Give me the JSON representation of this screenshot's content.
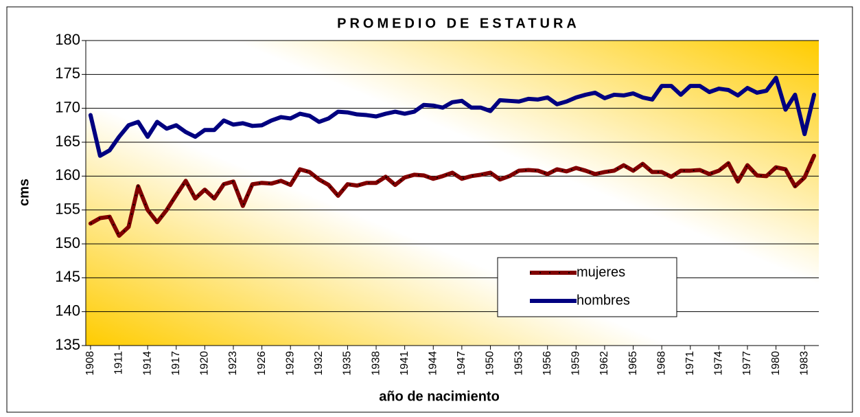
{
  "chart_data": {
    "type": "line",
    "title": "PROMEDIO DE ESTATURA",
    "x_label": "año de nacimiento",
    "y_label": "cms",
    "x": [
      1908,
      1909,
      1910,
      1911,
      1912,
      1913,
      1914,
      1915,
      1916,
      1917,
      1918,
      1919,
      1920,
      1921,
      1922,
      1923,
      1924,
      1925,
      1926,
      1927,
      1928,
      1929,
      1930,
      1931,
      1932,
      1933,
      1934,
      1935,
      1936,
      1937,
      1938,
      1939,
      1940,
      1941,
      1942,
      1943,
      1944,
      1945,
      1946,
      1947,
      1948,
      1949,
      1950,
      1951,
      1952,
      1953,
      1954,
      1955,
      1956,
      1957,
      1958,
      1959,
      1960,
      1961,
      1962,
      1963,
      1964,
      1965,
      1966,
      1967,
      1968,
      1969,
      1970,
      1971,
      1972,
      1973,
      1974,
      1975,
      1976,
      1977,
      1978,
      1979,
      1980,
      1981,
      1982,
      1983,
      1984
    ],
    "xlim": [
      1908,
      1984
    ],
    "xticks": [
      1908,
      1911,
      1914,
      1917,
      1920,
      1923,
      1926,
      1929,
      1932,
      1935,
      1938,
      1941,
      1944,
      1947,
      1950,
      1953,
      1956,
      1959,
      1962,
      1965,
      1968,
      1971,
      1974,
      1977,
      1980,
      1983
    ],
    "ylim": [
      135,
      180
    ],
    "yticks": [
      135,
      140,
      145,
      150,
      155,
      160,
      165,
      170,
      175,
      180
    ],
    "grid": true,
    "series": [
      {
        "name": "mujeres",
        "color": "#800000",
        "values": [
          153,
          153.8,
          154,
          151.2,
          152.5,
          158.5,
          155,
          153.2,
          155,
          157.2,
          159.3,
          156.7,
          158,
          156.7,
          158.8,
          159.2,
          155.6,
          158.8,
          159,
          158.9,
          159.3,
          158.7,
          161,
          160.6,
          159.5,
          158.7,
          157.1,
          158.8,
          158.6,
          159,
          159,
          159.9,
          158.7,
          159.8,
          160.2,
          160.1,
          159.6,
          160,
          160.5,
          159.6,
          160,
          160.2,
          160.5,
          159.5,
          160,
          160.8,
          160.9,
          160.8,
          160.3,
          161,
          160.7,
          161.2,
          160.8,
          160.3,
          160.6,
          160.8,
          161.6,
          160.8,
          161.8,
          160.6,
          160.6,
          159.9,
          160.8,
          160.8,
          160.9,
          160.3,
          160.8,
          161.9,
          159.2,
          161.6,
          160.1,
          160,
          161.3,
          161,
          158.5,
          159.8,
          163
        ]
      },
      {
        "name": "hombres",
        "color": "#000080",
        "values": [
          169,
          163,
          163.8,
          165.8,
          167.5,
          168,
          165.8,
          168,
          167,
          167.5,
          166.5,
          165.8,
          166.8,
          166.8,
          168.2,
          167.6,
          167.8,
          167.4,
          167.5,
          168.2,
          168.7,
          168.5,
          169.2,
          168.9,
          168,
          168.5,
          169.5,
          169.4,
          169.1,
          169,
          168.8,
          169.2,
          169.5,
          169.2,
          169.5,
          170.5,
          170.4,
          170.1,
          170.9,
          171.1,
          170.1,
          170.1,
          169.6,
          171.2,
          171.1,
          171,
          171.4,
          171.3,
          171.6,
          170.6,
          171,
          171.6,
          172,
          172.3,
          171.5,
          172,
          171.9,
          172.2,
          171.6,
          171.3,
          173.3,
          173.3,
          172,
          173.3,
          173.3,
          172.4,
          172.9,
          172.7,
          171.9,
          173,
          172.3,
          172.6,
          174.5,
          169.8,
          172,
          166.2,
          172
        ]
      }
    ]
  }
}
